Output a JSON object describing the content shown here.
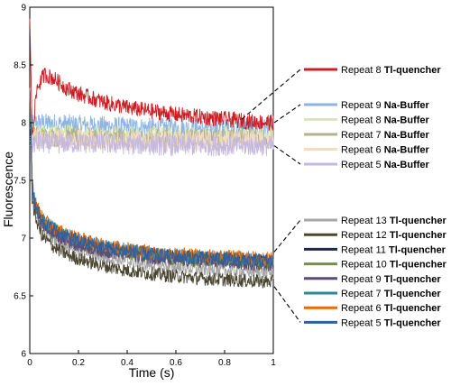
{
  "chart_data": {
    "type": "line",
    "xlabel": "Time (s)",
    "ylabel": "Fluorescence",
    "xlim": [
      0,
      1
    ],
    "ylim": [
      6,
      9
    ],
    "xticks": [
      "0",
      "0.2",
      "0.4",
      "0.6",
      "0.8",
      "1"
    ],
    "yticks": [
      "6",
      "6.5",
      "7",
      "7.5",
      "8",
      "8.5",
      "9"
    ],
    "grid": false,
    "legend_placement": "right",
    "series": [
      {
        "name": "Repeat  8",
        "tag": "Tl-quencher",
        "color": "#cc1f25",
        "group": "top",
        "x": [
          0,
          0.01,
          0.03,
          0.06,
          0.1,
          0.15,
          0.2,
          0.3,
          0.4,
          0.5,
          0.6,
          0.7,
          0.8,
          0.9,
          1.0
        ],
        "y": [
          8.9,
          7.9,
          8.3,
          8.42,
          8.38,
          8.3,
          8.25,
          8.18,
          8.13,
          8.1,
          8.07,
          8.05,
          8.03,
          8.01,
          8.0
        ]
      },
      {
        "name": "Repeat  9",
        "tag": "Na-Buffer",
        "color": "#8db4e2",
        "group": "buffer",
        "x": [
          0,
          0.02,
          0.2,
          0.4,
          0.6,
          0.8,
          1.0
        ],
        "y": [
          7.95,
          8.0,
          7.98,
          7.96,
          7.95,
          7.95,
          7.95
        ]
      },
      {
        "name": "Repeat  8",
        "tag": "Na-Buffer",
        "color": "#d9e8b0",
        "group": "buffer",
        "x": [
          0,
          0.02,
          0.2,
          0.4,
          0.6,
          0.8,
          1.0
        ],
        "y": [
          7.88,
          7.9,
          7.9,
          7.89,
          7.88,
          7.88,
          7.88
        ]
      },
      {
        "name": "Repeat  7",
        "tag": "Na-Buffer",
        "color": "#b5b090",
        "group": "buffer",
        "x": [
          0,
          0.02,
          0.2,
          0.4,
          0.6,
          0.8,
          1.0
        ],
        "y": [
          7.86,
          7.88,
          7.87,
          7.86,
          7.86,
          7.86,
          7.86
        ]
      },
      {
        "name": "Repeat  6",
        "tag": "Na-Buffer",
        "color": "#f3dcc0",
        "group": "buffer",
        "x": [
          0,
          0.02,
          0.2,
          0.4,
          0.6,
          0.8,
          1.0
        ],
        "y": [
          7.84,
          7.86,
          7.85,
          7.84,
          7.84,
          7.84,
          7.84
        ]
      },
      {
        "name": "Repeat  5",
        "tag": "Na-Buffer",
        "color": "#c5b9e0",
        "group": "buffer",
        "x": [
          0,
          0.02,
          0.2,
          0.4,
          0.6,
          0.8,
          1.0
        ],
        "y": [
          7.8,
          7.82,
          7.82,
          7.81,
          7.8,
          7.8,
          7.8
        ]
      },
      {
        "name": "Repeat 13",
        "tag": "Tl-quencher",
        "color": "#a6a6a6",
        "group": "bottom",
        "x": [
          0,
          0.01,
          0.02,
          0.05,
          0.1,
          0.15,
          0.2,
          0.3,
          0.4,
          0.5,
          0.6,
          0.7,
          0.8,
          0.9,
          1.0
        ],
        "y": [
          8.3,
          7.4,
          7.25,
          7.1,
          7.0,
          6.95,
          6.9,
          6.84,
          6.8,
          6.77,
          6.75,
          6.73,
          6.72,
          6.71,
          6.7
        ]
      },
      {
        "name": "Repeat 12",
        "tag": "Tl-quencher",
        "color": "#4a4630",
        "group": "bottom",
        "x": [
          0,
          0.01,
          0.02,
          0.05,
          0.1,
          0.15,
          0.2,
          0.3,
          0.4,
          0.5,
          0.6,
          0.7,
          0.8,
          0.9,
          1.0
        ],
        "y": [
          8.2,
          7.35,
          7.2,
          7.02,
          6.92,
          6.86,
          6.82,
          6.76,
          6.72,
          6.69,
          6.67,
          6.65,
          6.64,
          6.63,
          6.62
        ]
      },
      {
        "name": "Repeat 11",
        "tag": "Tl-quencher",
        "color": "#1f2a4a",
        "group": "bottom",
        "x": [
          0,
          0.01,
          0.02,
          0.05,
          0.1,
          0.15,
          0.2,
          0.3,
          0.4,
          0.5,
          0.6,
          0.7,
          0.8,
          0.9,
          1.0
        ],
        "y": [
          8.3,
          7.45,
          7.3,
          7.15,
          7.06,
          7.01,
          6.97,
          6.92,
          6.89,
          6.86,
          6.84,
          6.83,
          6.82,
          6.81,
          6.8
        ]
      },
      {
        "name": "Repeat 10",
        "tag": "Tl-quencher",
        "color": "#76923c",
        "group": "bottom",
        "x": [
          0,
          0.01,
          0.02,
          0.05,
          0.1,
          0.15,
          0.2,
          0.3,
          0.4,
          0.5,
          0.6,
          0.7,
          0.8,
          0.9,
          1.0
        ],
        "y": [
          8.3,
          7.44,
          7.28,
          7.13,
          7.04,
          6.99,
          6.95,
          6.9,
          6.87,
          6.84,
          6.82,
          6.81,
          6.8,
          6.79,
          6.78
        ]
      },
      {
        "name": "Repeat  9",
        "tag": "Tl-quencher",
        "color": "#604a7b",
        "group": "bottom",
        "x": [
          0,
          0.01,
          0.02,
          0.05,
          0.1,
          0.15,
          0.2,
          0.3,
          0.4,
          0.5,
          0.6,
          0.7,
          0.8,
          0.9,
          1.0
        ],
        "y": [
          8.3,
          7.43,
          7.27,
          7.12,
          7.03,
          6.98,
          6.94,
          6.89,
          6.86,
          6.83,
          6.81,
          6.8,
          6.79,
          6.78,
          6.77
        ]
      },
      {
        "name": "Repeat  7",
        "tag": "Tl-quencher",
        "color": "#31859c",
        "group": "bottom",
        "x": [
          0,
          0.01,
          0.02,
          0.05,
          0.1,
          0.15,
          0.2,
          0.3,
          0.4,
          0.5,
          0.6,
          0.7,
          0.8,
          0.9,
          1.0
        ],
        "y": [
          8.3,
          7.47,
          7.32,
          7.17,
          7.08,
          7.03,
          6.99,
          6.93,
          6.9,
          6.87,
          6.85,
          6.84,
          6.83,
          6.82,
          6.81
        ]
      },
      {
        "name": "Repeat  6",
        "tag": "Tl-quencher",
        "color": "#e46c0a",
        "group": "bottom",
        "x": [
          0,
          0.01,
          0.02,
          0.05,
          0.1,
          0.15,
          0.2,
          0.3,
          0.4,
          0.5,
          0.6,
          0.7,
          0.8,
          0.9,
          1.0
        ],
        "y": [
          8.3,
          7.48,
          7.33,
          7.18,
          7.09,
          7.04,
          7.0,
          6.94,
          6.91,
          6.88,
          6.86,
          6.85,
          6.84,
          6.83,
          6.82
        ]
      },
      {
        "name": "Repeat  5",
        "tag": "Tl-quencher",
        "color": "#2f5f9e",
        "group": "bottom",
        "x": [
          0,
          0.01,
          0.02,
          0.05,
          0.1,
          0.15,
          0.2,
          0.3,
          0.4,
          0.5,
          0.6,
          0.7,
          0.8,
          0.9,
          1.0
        ],
        "y": [
          8.3,
          7.46,
          7.31,
          7.16,
          7.07,
          7.02,
          6.98,
          6.92,
          6.89,
          6.86,
          6.84,
          6.83,
          6.82,
          6.81,
          6.8
        ]
      }
    ]
  }
}
